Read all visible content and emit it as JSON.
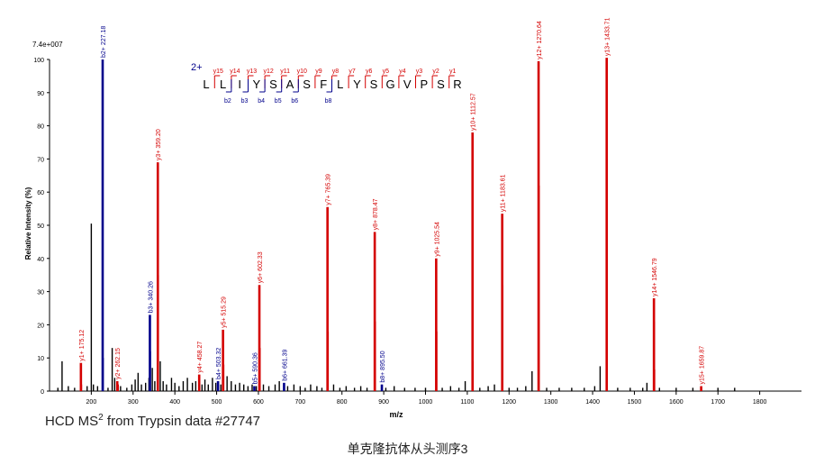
{
  "chart_data": {
    "type": "bar",
    "ylabel": "Relative Intensity (%)",
    "xlabel": "m/z",
    "max_intensity_label": "7.4e+007",
    "xlim": [
      100,
      1900
    ],
    "ylim": [
      0,
      100
    ],
    "x_ticks": [
      200,
      300,
      400,
      500,
      600,
      700,
      800,
      900,
      1000,
      1100,
      1200,
      1300,
      1400,
      1500,
      1600,
      1700,
      1800
    ],
    "y_ticks": [
      0,
      10,
      20,
      30,
      40,
      50,
      60,
      70,
      80,
      90,
      100
    ],
    "colors": {
      "y_ion": "#d40000",
      "b_ion": "#00008b",
      "unassigned": "#000000"
    },
    "annotated_peaks": [
      {
        "mz": 175.12,
        "intensity": 8.5,
        "ion": "y",
        "label": "y1+ 175.12"
      },
      {
        "mz": 227.18,
        "intensity": 100,
        "ion": "b",
        "label": "b2+ 227.18"
      },
      {
        "mz": 262.15,
        "intensity": 3,
        "ion": "y",
        "label": "y2+ 262.15"
      },
      {
        "mz": 340.26,
        "intensity": 23,
        "ion": "b",
        "label": "b3+ 340.26"
      },
      {
        "mz": 359.2,
        "intensity": 69,
        "ion": "y",
        "label": "y3+ 359.20"
      },
      {
        "mz": 458.27,
        "intensity": 5,
        "ion": "y",
        "label": "y4+ 458.27"
      },
      {
        "mz": 503.32,
        "intensity": 3,
        "ion": "b",
        "label": "b4+ 503.32"
      },
      {
        "mz": 515.29,
        "intensity": 18.5,
        "ion": "y",
        "label": "y5+ 515.29"
      },
      {
        "mz": 590.36,
        "intensity": 1.5,
        "ion": "b",
        "label": "b5+ 590.36"
      },
      {
        "mz": 602.33,
        "intensity": 32,
        "ion": "y",
        "label": "y6+ 602.33"
      },
      {
        "mz": 661.39,
        "intensity": 2.5,
        "ion": "b",
        "label": "b6+ 661.39"
      },
      {
        "mz": 765.39,
        "intensity": 55.5,
        "ion": "y",
        "label": "y7+ 765.39"
      },
      {
        "mz": 878.47,
        "intensity": 48,
        "ion": "y",
        "label": "y8+ 878.47"
      },
      {
        "mz": 895.5,
        "intensity": 2,
        "ion": "b",
        "label": "b8+ 895.50"
      },
      {
        "mz": 1025.54,
        "intensity": 40,
        "ion": "y",
        "label": "y9+ 1025.54"
      },
      {
        "mz": 1112.57,
        "intensity": 78,
        "ion": "y",
        "label": "y10+ 1112.57"
      },
      {
        "mz": 1183.61,
        "intensity": 53.5,
        "ion": "y",
        "label": "y11+ 1183.61"
      },
      {
        "mz": 1270.64,
        "intensity": 99.5,
        "ion": "y",
        "label": "y12+ 1270.64"
      },
      {
        "mz": 1433.71,
        "intensity": 100.5,
        "ion": "y",
        "label": "y13+ 1433.71"
      },
      {
        "mz": 1546.79,
        "intensity": 28,
        "ion": "y",
        "label": "y14+ 1546.79"
      },
      {
        "mz": 1659.87,
        "intensity": 1.5,
        "ion": "y",
        "label": "y15+ 1659.87"
      }
    ],
    "unlabeled_ion_peaks": [
      {
        "mz": 176.5,
        "intensity": 2,
        "ion": "y"
      },
      {
        "mz": 264.5,
        "intensity": 2,
        "ion": "y"
      },
      {
        "mz": 360.5,
        "intensity": 35,
        "ion": "y"
      },
      {
        "mz": 517,
        "intensity": 8,
        "ion": "y"
      },
      {
        "mz": 604,
        "intensity": 13,
        "ion": "y"
      },
      {
        "mz": 767,
        "intensity": 18,
        "ion": "y"
      },
      {
        "mz": 880,
        "intensity": 21,
        "ion": "y"
      },
      {
        "mz": 1027,
        "intensity": 18,
        "ion": "y"
      },
      {
        "mz": 1114,
        "intensity": 9,
        "ion": "y"
      },
      {
        "mz": 1185,
        "intensity": 32,
        "ion": "y"
      },
      {
        "mz": 1272,
        "intensity": 62,
        "ion": "y"
      },
      {
        "mz": 1435,
        "intensity": 70,
        "ion": "y"
      },
      {
        "mz": 1548,
        "intensity": 21,
        "ion": "y"
      },
      {
        "mz": 1548.5,
        "intensity": 6.5,
        "ion": "y"
      },
      {
        "mz": 228.5,
        "intensity": 10,
        "ion": "b"
      },
      {
        "mz": 341.5,
        "intensity": 12,
        "ion": "b"
      }
    ],
    "other_peaks": [
      {
        "mz": 120,
        "intensity": 1
      },
      {
        "mz": 130,
        "intensity": 9
      },
      {
        "mz": 145,
        "intensity": 1.5
      },
      {
        "mz": 160,
        "intensity": 1
      },
      {
        "mz": 190,
        "intensity": 1.5
      },
      {
        "mz": 200,
        "intensity": 50.5
      },
      {
        "mz": 205,
        "intensity": 2
      },
      {
        "mz": 215,
        "intensity": 1.5
      },
      {
        "mz": 240,
        "intensity": 1
      },
      {
        "mz": 250,
        "intensity": 13
      },
      {
        "mz": 256,
        "intensity": 4
      },
      {
        "mz": 270,
        "intensity": 1.5
      },
      {
        "mz": 285,
        "intensity": 1
      },
      {
        "mz": 297,
        "intensity": 2
      },
      {
        "mz": 305,
        "intensity": 3.5
      },
      {
        "mz": 312,
        "intensity": 5.5
      },
      {
        "mz": 320,
        "intensity": 2
      },
      {
        "mz": 330,
        "intensity": 2.5
      },
      {
        "mz": 338,
        "intensity": 4
      },
      {
        "mz": 346,
        "intensity": 7
      },
      {
        "mz": 352,
        "intensity": 3
      },
      {
        "mz": 365,
        "intensity": 9
      },
      {
        "mz": 372,
        "intensity": 3
      },
      {
        "mz": 380,
        "intensity": 2
      },
      {
        "mz": 392,
        "intensity": 4
      },
      {
        "mz": 400,
        "intensity": 2.5
      },
      {
        "mz": 410,
        "intensity": 1.5
      },
      {
        "mz": 420,
        "intensity": 3
      },
      {
        "mz": 430,
        "intensity": 4
      },
      {
        "mz": 442,
        "intensity": 2.5
      },
      {
        "mz": 450,
        "intensity": 3
      },
      {
        "mz": 465,
        "intensity": 2
      },
      {
        "mz": 472,
        "intensity": 3.5
      },
      {
        "mz": 480,
        "intensity": 2
      },
      {
        "mz": 490,
        "intensity": 4
      },
      {
        "mz": 498,
        "intensity": 2.5
      },
      {
        "mz": 510,
        "intensity": 2
      },
      {
        "mz": 525,
        "intensity": 4.5
      },
      {
        "mz": 535,
        "intensity": 3
      },
      {
        "mz": 545,
        "intensity": 2
      },
      {
        "mz": 555,
        "intensity": 2.5
      },
      {
        "mz": 565,
        "intensity": 2
      },
      {
        "mz": 575,
        "intensity": 1.5
      },
      {
        "mz": 585,
        "intensity": 2
      },
      {
        "mz": 595,
        "intensity": 1.5
      },
      {
        "mz": 612,
        "intensity": 2
      },
      {
        "mz": 625,
        "intensity": 1.5
      },
      {
        "mz": 640,
        "intensity": 2
      },
      {
        "mz": 650,
        "intensity": 3
      },
      {
        "mz": 670,
        "intensity": 1.5
      },
      {
        "mz": 685,
        "intensity": 2
      },
      {
        "mz": 700,
        "intensity": 1.5
      },
      {
        "mz": 712,
        "intensity": 1
      },
      {
        "mz": 725,
        "intensity": 2
      },
      {
        "mz": 740,
        "intensity": 1.5
      },
      {
        "mz": 752,
        "intensity": 1
      },
      {
        "mz": 780,
        "intensity": 2
      },
      {
        "mz": 795,
        "intensity": 1
      },
      {
        "mz": 810,
        "intensity": 1.5
      },
      {
        "mz": 830,
        "intensity": 1
      },
      {
        "mz": 845,
        "intensity": 1.5
      },
      {
        "mz": 860,
        "intensity": 1
      },
      {
        "mz": 905,
        "intensity": 1
      },
      {
        "mz": 925,
        "intensity": 1.5
      },
      {
        "mz": 950,
        "intensity": 1
      },
      {
        "mz": 975,
        "intensity": 1
      },
      {
        "mz": 1000,
        "intensity": 1
      },
      {
        "mz": 1040,
        "intensity": 1
      },
      {
        "mz": 1060,
        "intensity": 1.5
      },
      {
        "mz": 1080,
        "intensity": 1
      },
      {
        "mz": 1095,
        "intensity": 3
      },
      {
        "mz": 1130,
        "intensity": 1
      },
      {
        "mz": 1150,
        "intensity": 1.5
      },
      {
        "mz": 1165,
        "intensity": 2
      },
      {
        "mz": 1200,
        "intensity": 1
      },
      {
        "mz": 1220,
        "intensity": 1
      },
      {
        "mz": 1240,
        "intensity": 1.5
      },
      {
        "mz": 1255,
        "intensity": 6
      },
      {
        "mz": 1290,
        "intensity": 1
      },
      {
        "mz": 1320,
        "intensity": 1
      },
      {
        "mz": 1350,
        "intensity": 1
      },
      {
        "mz": 1380,
        "intensity": 1
      },
      {
        "mz": 1405,
        "intensity": 1.5
      },
      {
        "mz": 1418,
        "intensity": 7.5
      },
      {
        "mz": 1460,
        "intensity": 1
      },
      {
        "mz": 1490,
        "intensity": 1
      },
      {
        "mz": 1520,
        "intensity": 1
      },
      {
        "mz": 1530,
        "intensity": 2.5
      },
      {
        "mz": 1560,
        "intensity": 1
      },
      {
        "mz": 1600,
        "intensity": 1
      },
      {
        "mz": 1640,
        "intensity": 1
      },
      {
        "mz": 1700,
        "intensity": 1
      },
      {
        "mz": 1740,
        "intensity": 1
      }
    ]
  },
  "sequence_diagram": {
    "charge": "2+",
    "residues": [
      "L",
      "L",
      "I",
      "Y",
      "S",
      "A",
      "S",
      "F",
      "L",
      "Y",
      "S",
      "G",
      "V",
      "P",
      "S",
      "R"
    ],
    "y_ion_labels": [
      "y15",
      "y14",
      "y13",
      "y12",
      "y11",
      "y10",
      "y9",
      "y8",
      "y7",
      "y6",
      "y5",
      "y4",
      "y3",
      "y2",
      "y1"
    ],
    "b_ion_labels": [
      "b2",
      "b3",
      "b4",
      "b5",
      "b6",
      "b8"
    ],
    "b_ion_positions": [
      2,
      3,
      4,
      5,
      6,
      8
    ]
  },
  "captions": {
    "source_prefix": "HCD MS",
    "source_sup": "2",
    "source_suffix": " from Trypsin data #27747",
    "chinese_title": "单克隆抗体从头测序3"
  }
}
